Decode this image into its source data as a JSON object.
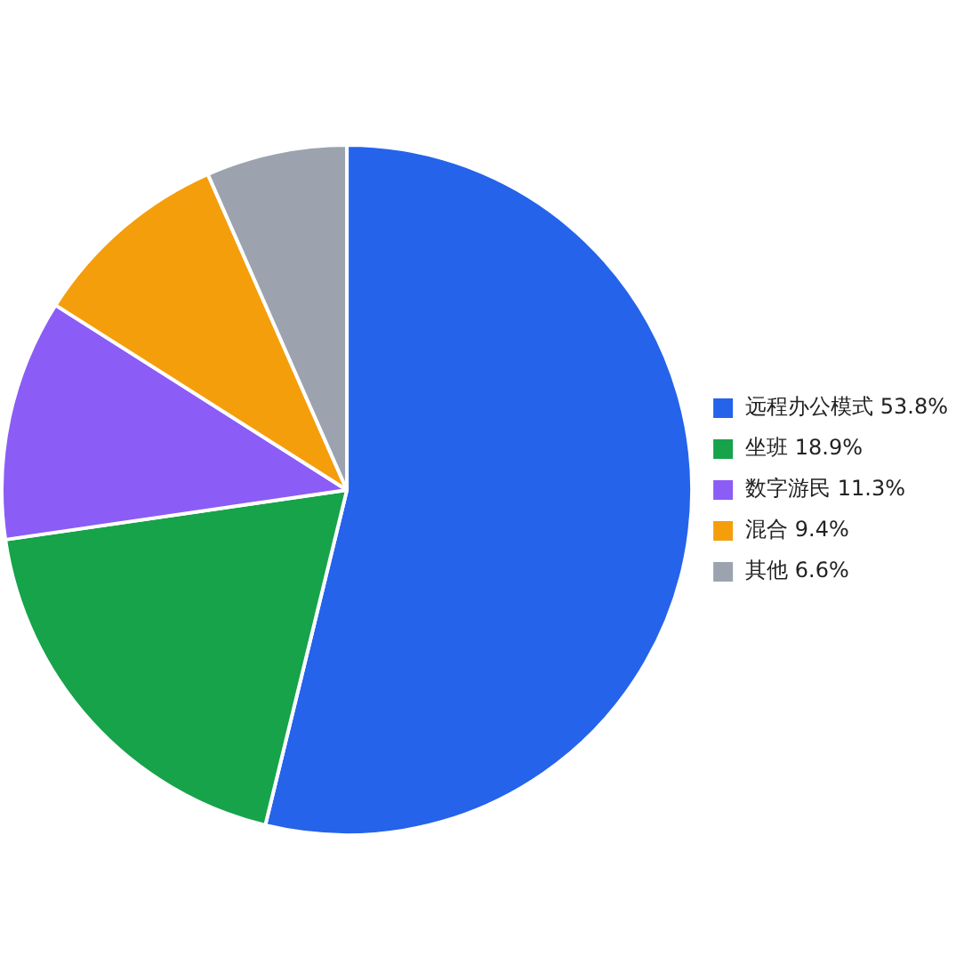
{
  "chart_data": {
    "type": "pie",
    "categories": [
      "远程办公模式 53.8%",
      "坐班 18.9%",
      "数字游民 11.3%",
      "混合 9.4%",
      "其他 6.6%"
    ],
    "values": [
      53.8,
      18.9,
      11.3,
      9.4,
      6.6
    ],
    "colors": [
      "#2563eb",
      "#16a34a",
      "#8b5cf6",
      "#f59e0b",
      "#9ca3af"
    ],
    "legend": "right"
  }
}
